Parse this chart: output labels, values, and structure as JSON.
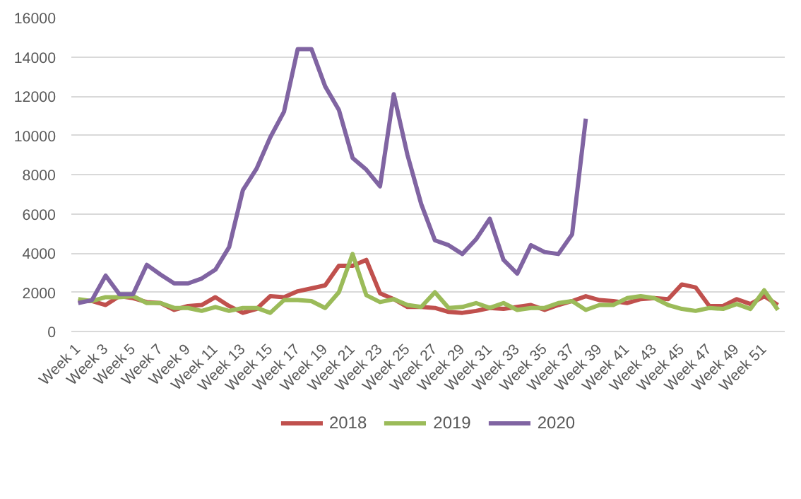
{
  "chart_data": {
    "type": "line",
    "categories": [
      "Week 1",
      null,
      "Week 3",
      null,
      "Week 5",
      null,
      "Week 7",
      null,
      "Week 9",
      null,
      "Week 11",
      null,
      "Week 13",
      null,
      "Week 15",
      null,
      "Week 17",
      null,
      "Week 19",
      null,
      "Week 21",
      null,
      "Week 23",
      null,
      "Week 25",
      null,
      "Week 27",
      null,
      "Week 29",
      null,
      "Week 31",
      null,
      "Week 33",
      null,
      "Week 35",
      null,
      "Week 37",
      null,
      "Week 39",
      null,
      "Week 41",
      null,
      "Week 43",
      null,
      "Week 45",
      null,
      "Week 47",
      null,
      "Week 49",
      null,
      "Week 51",
      null
    ],
    "series": [
      {
        "name": "2018",
        "color": "#c0504d",
        "values": [
          1550,
          1550,
          1350,
          1800,
          1700,
          1500,
          1450,
          1100,
          1300,
          1350,
          1750,
          1300,
          950,
          1150,
          1800,
          1750,
          2050,
          2200,
          2350,
          3350,
          3350,
          3650,
          1950,
          1650,
          1250,
          1250,
          1200,
          1000,
          950,
          1050,
          1200,
          1150,
          1250,
          1350,
          1100,
          1350,
          1550,
          1800,
          1600,
          1550,
          1450,
          1650,
          1700,
          1650,
          2400,
          2250,
          1300,
          1300,
          1650,
          1400,
          1800,
          1350
        ]
      },
      {
        "name": "2019",
        "color": "#9bbb59",
        "values": [
          1650,
          1550,
          1750,
          1750,
          1800,
          1450,
          1450,
          1200,
          1200,
          1050,
          1250,
          1050,
          1200,
          1200,
          950,
          1600,
          1600,
          1550,
          1200,
          2000,
          3950,
          1850,
          1500,
          1650,
          1350,
          1250,
          2000,
          1200,
          1250,
          1450,
          1200,
          1450,
          1100,
          1200,
          1200,
          1450,
          1550,
          1100,
          1350,
          1350,
          1700,
          1800,
          1700,
          1350,
          1150,
          1050,
          1200,
          1150,
          1400,
          1150,
          2100,
          1100
        ]
      },
      {
        "name": "2020",
        "color": "#8064a2",
        "values": [
          1450,
          1600,
          2850,
          1900,
          1900,
          3400,
          2900,
          2450,
          2450,
          2700,
          3150,
          4300,
          7200,
          8300,
          9900,
          11200,
          14400,
          14400,
          12500,
          11300,
          8850,
          8250,
          7400,
          12100,
          9000,
          6500,
          4650,
          4400,
          3950,
          4700,
          5750,
          3650,
          2950,
          4400,
          4050,
          3950,
          4950,
          10850,
          null,
          null,
          null,
          null,
          null,
          null,
          null,
          null,
          null,
          null,
          null,
          null,
          null,
          null
        ]
      }
    ],
    "ylim": [
      0,
      16000
    ],
    "yticks": [
      0,
      2000,
      4000,
      6000,
      8000,
      10000,
      12000,
      14000,
      16000
    ],
    "grid": "y",
    "legend": "bottom",
    "marker": "none",
    "line_style": "solid"
  }
}
